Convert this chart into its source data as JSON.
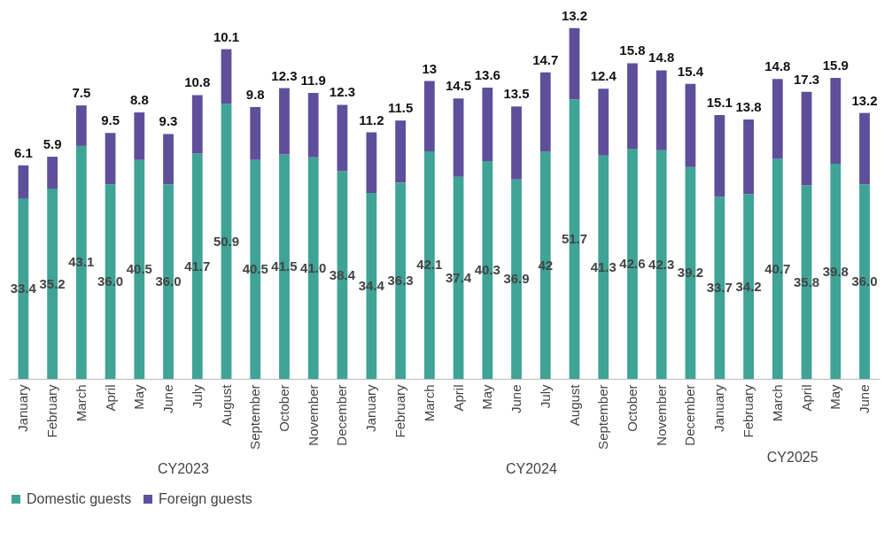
{
  "chart_data": [
    {
      "type": "bar",
      "stacked": true,
      "xlabel": "CY2023",
      "tick_labels": "x",
      "legend": "bottom",
      "categories": [
        "January",
        "February",
        "March",
        "April",
        "May",
        "June",
        "July",
        "August",
        "September",
        "October",
        "November",
        "December"
      ],
      "series": [
        {
          "name": "Domestic guests",
          "color": "#3fa396",
          "values": [
            33.4,
            35.2,
            43.1,
            36.0,
            40.5,
            36.0,
            41.7,
            50.9,
            40.5,
            41.5,
            41.0,
            38.4
          ],
          "value_labels": [
            "33.4",
            "35.2",
            "43.1",
            "36.0",
            "40.5",
            "36.0",
            "41.7",
            "50.9",
            "40.5",
            "41.5",
            "41.0",
            "38.4"
          ]
        },
        {
          "name": "Foreign guests",
          "color": "#5e4f9a",
          "values": [
            6.1,
            5.9,
            7.5,
            9.5,
            8.8,
            9.3,
            10.8,
            10.1,
            9.8,
            12.3,
            11.9,
            12.3
          ],
          "value_labels": [
            "6.1",
            "5.9",
            "7.5",
            "9.5",
            "8.8",
            "9.3",
            "10.8",
            "10.1",
            "9.8",
            "12.3",
            "11.9",
            "12.3"
          ]
        }
      ]
    },
    {
      "type": "bar",
      "stacked": true,
      "xlabel": "CY2024",
      "tick_labels": "x",
      "legend": "bottom",
      "categories": [
        "January",
        "February",
        "March",
        "April",
        "May",
        "June",
        "July",
        "August",
        "September",
        "October",
        "November",
        "December"
      ],
      "series": [
        {
          "name": "Domestic guests",
          "color": "#3fa396",
          "values": [
            34.4,
            36.3,
            42.1,
            37.4,
            40.3,
            36.9,
            42,
            51.7,
            41.3,
            42.6,
            42.3,
            39.2
          ],
          "value_labels": [
            "34.4",
            "36.3",
            "42.1",
            "37.4",
            "40.3",
            "36.9",
            "42",
            "51.7",
            "41.3",
            "42.6",
            "42.3",
            "39.2"
          ]
        },
        {
          "name": "Foreign guests",
          "color": "#5e4f9a",
          "values": [
            11.2,
            11.5,
            13,
            14.5,
            13.6,
            13.5,
            14.7,
            13.2,
            12.4,
            15.8,
            14.8,
            15.4
          ],
          "value_labels": [
            "11.2",
            "11.5",
            "13",
            "14.5",
            "13.6",
            "13.5",
            "14.7",
            "13.2",
            "12.4",
            "15.8",
            "14.8",
            "15.4"
          ]
        }
      ]
    },
    {
      "type": "bar",
      "stacked": true,
      "xlabel": "CY2025",
      "tick_labels": "x",
      "legend": "bottom",
      "categories": [
        "January",
        "February",
        "March",
        "April",
        "May",
        "June"
      ],
      "series": [
        {
          "name": "Domestic guests",
          "color": "#3fa396",
          "values": [
            33.7,
            34.2,
            40.7,
            35.8,
            39.8,
            36.0
          ],
          "value_labels": [
            "33.7",
            "34.2",
            "40.7",
            "35.8",
            "39.8",
            "36.0"
          ]
        },
        {
          "name": "Foreign guests",
          "color": "#5e4f9a",
          "values": [
            15.1,
            13.8,
            14.8,
            17.3,
            15.9,
            13.2
          ],
          "value_labels": [
            "15.1",
            "13.8",
            "14.8",
            "17.3",
            "15.9",
            "13.2"
          ]
        }
      ]
    }
  ]
}
